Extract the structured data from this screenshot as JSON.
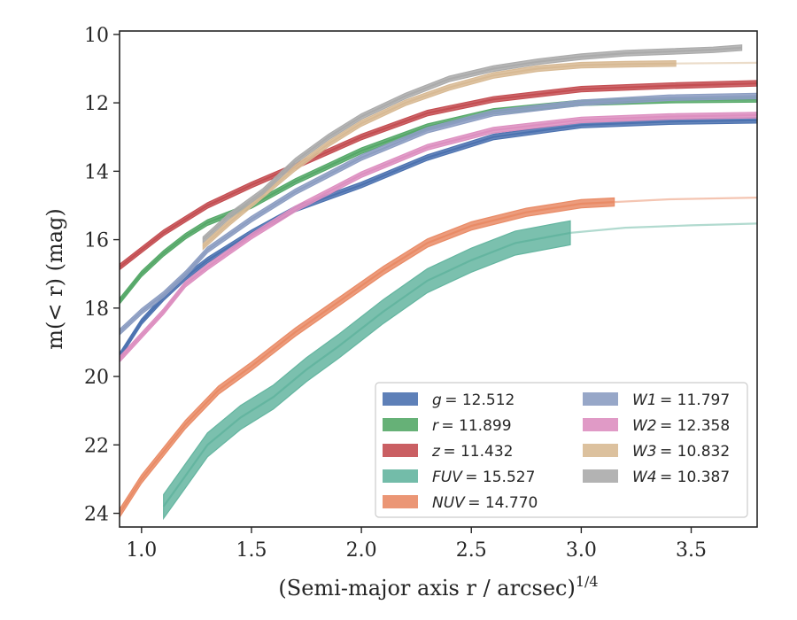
{
  "chart_data": {
    "type": "line",
    "xlabel": "(Semi-major axis r / arcsec)",
    "xlabel_exponent": "1/4",
    "ylabel": "m(< r) (mag)",
    "xlim": [
      0.9,
      3.8
    ],
    "ylim": [
      24.4,
      9.9
    ],
    "y_inverted": true,
    "xticks": [
      1.0,
      1.5,
      2.0,
      2.5,
      3.0,
      3.5
    ],
    "xtick_labels": [
      "1.0",
      "1.5",
      "2.0",
      "2.5",
      "3.0",
      "3.5"
    ],
    "yticks": [
      10,
      12,
      14,
      16,
      18,
      20,
      22,
      24
    ],
    "ytick_labels": [
      "10",
      "12",
      "14",
      "16",
      "18",
      "20",
      "22",
      "24"
    ],
    "grid": false,
    "legend_position": "lower-right",
    "series": [
      {
        "name": "g = 12.512",
        "label_var": "g",
        "label_val": "= 12.512",
        "color": "#4c72b0",
        "x": [
          0.9,
          1.0,
          1.1,
          1.2,
          1.3,
          1.5,
          1.7,
          2.0,
          2.3,
          2.6,
          3.0,
          3.4,
          3.8
        ],
        "y": [
          19.4,
          18.4,
          17.7,
          17.1,
          16.6,
          15.8,
          15.1,
          14.4,
          13.6,
          13.0,
          12.65,
          12.55,
          12.51
        ],
        "band": 0.08,
        "faded_from": 3.8
      },
      {
        "name": "r = 11.899",
        "label_var": "r",
        "label_val": "= 11.899",
        "color": "#55a868",
        "x": [
          0.9,
          1.0,
          1.1,
          1.2,
          1.3,
          1.5,
          1.7,
          2.0,
          2.3,
          2.6,
          3.0,
          3.4,
          3.8
        ],
        "y": [
          17.8,
          17.0,
          16.4,
          15.9,
          15.5,
          15.0,
          14.3,
          13.4,
          12.7,
          12.25,
          12.0,
          11.92,
          11.9
        ],
        "band": 0.08,
        "faded_from": 3.8
      },
      {
        "name": "z = 11.432",
        "label_var": "z",
        "label_val": "= 11.432",
        "color": "#c44e52",
        "x": [
          0.9,
          1.0,
          1.1,
          1.2,
          1.3,
          1.5,
          1.7,
          2.0,
          2.3,
          2.6,
          3.0,
          3.4,
          3.8
        ],
        "y": [
          16.8,
          16.3,
          15.8,
          15.4,
          15.0,
          14.4,
          13.85,
          13.0,
          12.3,
          11.9,
          11.6,
          11.5,
          11.43
        ],
        "band": 0.08,
        "faded_from": 3.8
      },
      {
        "name": "FUV = 15.527",
        "label_var": "FUV",
        "label_val": "= 15.527",
        "color": "#64b5a0",
        "x": [
          1.1,
          1.2,
          1.3,
          1.45,
          1.6,
          1.75,
          1.9,
          2.1,
          2.3,
          2.5,
          2.7,
          2.95,
          3.2,
          3.5,
          3.8
        ],
        "y": [
          23.8,
          22.9,
          22.0,
          21.2,
          20.6,
          19.8,
          19.1,
          18.1,
          17.2,
          16.6,
          16.1,
          15.8,
          15.65,
          15.58,
          15.53
        ],
        "band": 0.35,
        "faded_from": 2.95
      },
      {
        "name": "NUV = 14.770",
        "label_var": "NUV",
        "label_val": "= 14.770",
        "color": "#e98b66",
        "x": [
          0.9,
          1.0,
          1.1,
          1.2,
          1.35,
          1.5,
          1.7,
          1.9,
          2.1,
          2.3,
          2.5,
          2.75,
          3.0,
          3.15,
          3.4,
          3.8
        ],
        "y": [
          24.0,
          23.0,
          22.2,
          21.4,
          20.4,
          19.7,
          18.7,
          17.8,
          16.9,
          16.1,
          15.6,
          15.2,
          14.95,
          14.9,
          14.82,
          14.77
        ],
        "band": 0.12,
        "faded_from": 3.15
      },
      {
        "name": "W1 = 11.797",
        "label_var": "W1",
        "label_val": "= 11.797",
        "color": "#8c9dc2",
        "x": [
          0.9,
          1.0,
          1.1,
          1.2,
          1.3,
          1.5,
          1.7,
          2.0,
          2.3,
          2.6,
          3.0,
          3.4,
          3.8
        ],
        "y": [
          18.7,
          18.1,
          17.6,
          17.0,
          16.3,
          15.4,
          14.6,
          13.6,
          12.8,
          12.3,
          12.0,
          11.85,
          11.8
        ],
        "band": 0.08,
        "faded_from": 3.8
      },
      {
        "name": "W2 = 12.358",
        "label_var": "W2",
        "label_val": "= 12.358",
        "color": "#dd8fc0",
        "x": [
          0.9,
          1.0,
          1.1,
          1.2,
          1.3,
          1.5,
          1.7,
          2.0,
          2.3,
          2.6,
          3.0,
          3.4,
          3.8
        ],
        "y": [
          19.5,
          18.8,
          18.1,
          17.3,
          16.8,
          15.9,
          15.1,
          14.1,
          13.3,
          12.8,
          12.5,
          12.4,
          12.36
        ],
        "band": 0.08,
        "faded_from": 3.8
      },
      {
        "name": "W3 = 10.832",
        "label_var": "W3",
        "label_val": "= 10.832",
        "color": "#d8ba94",
        "x": [
          1.28,
          1.4,
          1.55,
          1.7,
          1.85,
          2.0,
          2.2,
          2.4,
          2.6,
          2.8,
          3.0,
          3.2,
          3.43,
          3.6,
          3.8
        ],
        "y": [
          16.2,
          15.5,
          14.7,
          13.9,
          13.2,
          12.6,
          12.0,
          11.55,
          11.2,
          11.0,
          10.9,
          10.87,
          10.85,
          10.84,
          10.83
        ],
        "band": 0.08,
        "faded_from": 3.43
      },
      {
        "name": "W4 = 10.387",
        "label_var": "W4",
        "label_val": "= 10.387",
        "color": "#ababab",
        "x": [
          1.28,
          1.4,
          1.55,
          1.7,
          1.85,
          2.0,
          2.2,
          2.4,
          2.6,
          2.8,
          3.0,
          3.2,
          3.4,
          3.6,
          3.73
        ],
        "y": [
          16.0,
          15.3,
          14.6,
          13.7,
          13.0,
          12.4,
          11.8,
          11.3,
          11.0,
          10.8,
          10.65,
          10.55,
          10.5,
          10.45,
          10.39
        ],
        "band": 0.08,
        "faded_from": 3.8
      }
    ],
    "legend_columns": [
      [
        "g = 12.512",
        "r = 11.899",
        "z = 11.432",
        "FUV = 15.527",
        "NUV = 14.770"
      ],
      [
        "W1 = 11.797",
        "W2 = 12.358",
        "W3 = 10.832",
        "W4 = 10.387"
      ]
    ]
  }
}
